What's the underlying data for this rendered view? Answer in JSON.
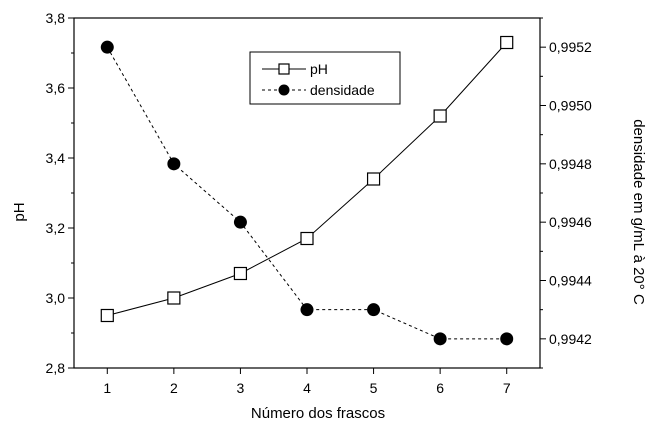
{
  "chart_data": {
    "type": "line",
    "x": [
      1,
      2,
      3,
      4,
      5,
      6,
      7
    ],
    "xlabel": "Número dos frascos",
    "xlim": [
      0.5,
      7.5
    ],
    "x_tick_labels": [
      "1",
      "2",
      "3",
      "4",
      "5",
      "6",
      "7"
    ],
    "y_left": {
      "label": "pH",
      "lim": [
        2.8,
        3.8
      ],
      "ticks": [
        2.8,
        3.0,
        3.2,
        3.4,
        3.6,
        3.8
      ],
      "tick_labels": [
        "2,8",
        "3,0",
        "3,2",
        "3,4",
        "3,6",
        "3,8"
      ]
    },
    "y_right": {
      "label": "densidade em g/mL à 20° C",
      "lim": [
        0.9941,
        0.9953
      ],
      "ticks": [
        0.9942,
        0.9944,
        0.9946,
        0.9948,
        0.995,
        0.9952
      ],
      "tick_labels": [
        "0,9942",
        "0,9944",
        "0,9946",
        "0,9948",
        "0,9950",
        "0,9952"
      ]
    },
    "series": [
      {
        "name": "pH",
        "axis": "left",
        "marker": "open-square",
        "line_style": "solid",
        "values": [
          2.95,
          3.0,
          3.07,
          3.17,
          3.34,
          3.52,
          3.73
        ]
      },
      {
        "name": "densidade",
        "axis": "right",
        "marker": "filled-circle",
        "line_style": "dashed",
        "values": [
          0.9952,
          0.9948,
          0.9946,
          0.9943,
          0.9943,
          0.9942,
          0.9942
        ]
      }
    ],
    "legend_position": "top-center",
    "grid": false,
    "colors": {
      "line": "#000000",
      "background": "#ffffff"
    }
  }
}
